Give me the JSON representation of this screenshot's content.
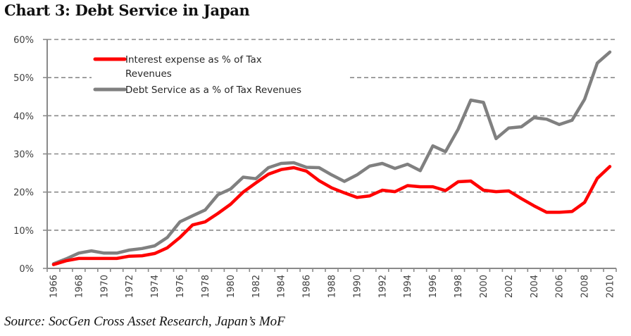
{
  "title": "Chart 3:  Debt Service in Japan",
  "source": "Source: SocGen Cross Asset Research, Japan’s MoF",
  "chart_data": {
    "type": "line",
    "title": "Chart 3:  Debt Service in Japan",
    "xlabel": "",
    "ylabel": "",
    "ylim": [
      0,
      60
    ],
    "y_ticks": [
      "0%",
      "10%",
      "20%",
      "30%",
      "40%",
      "50%",
      "60%"
    ],
    "y_tick_values": [
      0,
      10,
      20,
      30,
      40,
      50,
      60
    ],
    "x_tick_labels": [
      "1966",
      "1968",
      "1970",
      "1972",
      "1974",
      "1976",
      "1978",
      "1980",
      "1982",
      "1984",
      "1986",
      "1988",
      "1990",
      "1992",
      "1994",
      "1996",
      "1998",
      "2000",
      "2002",
      "2004",
      "2006",
      "2008",
      "2010"
    ],
    "grid": "horizontal dashed",
    "legend_position": "top-left",
    "x": [
      1966,
      1967,
      1968,
      1969,
      1970,
      1971,
      1972,
      1973,
      1974,
      1975,
      1976,
      1977,
      1978,
      1979,
      1980,
      1981,
      1982,
      1983,
      1984,
      1985,
      1986,
      1987,
      1988,
      1989,
      1990,
      1991,
      1992,
      1993,
      1994,
      1995,
      1996,
      1997,
      1998,
      1999,
      2000,
      2001,
      2002,
      2003,
      2004,
      2005,
      2006,
      2007,
      2008,
      2009,
      2010
    ],
    "series": [
      {
        "name": "Interest expense as % of Tax Revenues",
        "legend_lines": [
          "Interest expense as % of Tax",
          "Revenues"
        ],
        "color": "#ff0000",
        "values": [
          1.0,
          2.0,
          2.6,
          2.6,
          2.6,
          2.6,
          3.2,
          3.3,
          3.9,
          5.4,
          8.1,
          11.4,
          12.2,
          14.4,
          16.8,
          20.0,
          22.4,
          24.7,
          25.9,
          26.4,
          25.5,
          23.0,
          21.1,
          19.8,
          18.6,
          19.0,
          20.5,
          20.1,
          21.7,
          21.4,
          21.4,
          20.4,
          22.7,
          22.9,
          20.5,
          20.1,
          20.3,
          18.3,
          16.4,
          14.7,
          14.7,
          14.9,
          17.3,
          23.6,
          26.7
        ]
      },
      {
        "name": "Debt Service as a % of Tax Revenues",
        "legend_lines": [
          "Debt Service as a % of Tax Revenues"
        ],
        "color": "#808080",
        "values": [
          1.2,
          2.5,
          4.0,
          4.6,
          4.0,
          4.0,
          4.8,
          5.2,
          5.9,
          8.1,
          12.2,
          13.8,
          15.3,
          19.3,
          20.8,
          23.9,
          23.5,
          26.4,
          27.5,
          27.7,
          26.5,
          26.4,
          24.5,
          22.8,
          24.5,
          26.8,
          27.5,
          26.2,
          27.3,
          25.6,
          32.1,
          30.6,
          36.5,
          44.1,
          43.5,
          34.0,
          36.8,
          37.1,
          39.5,
          39.1,
          37.7,
          38.8,
          44.3,
          53.8,
          56.7
        ]
      }
    ]
  }
}
